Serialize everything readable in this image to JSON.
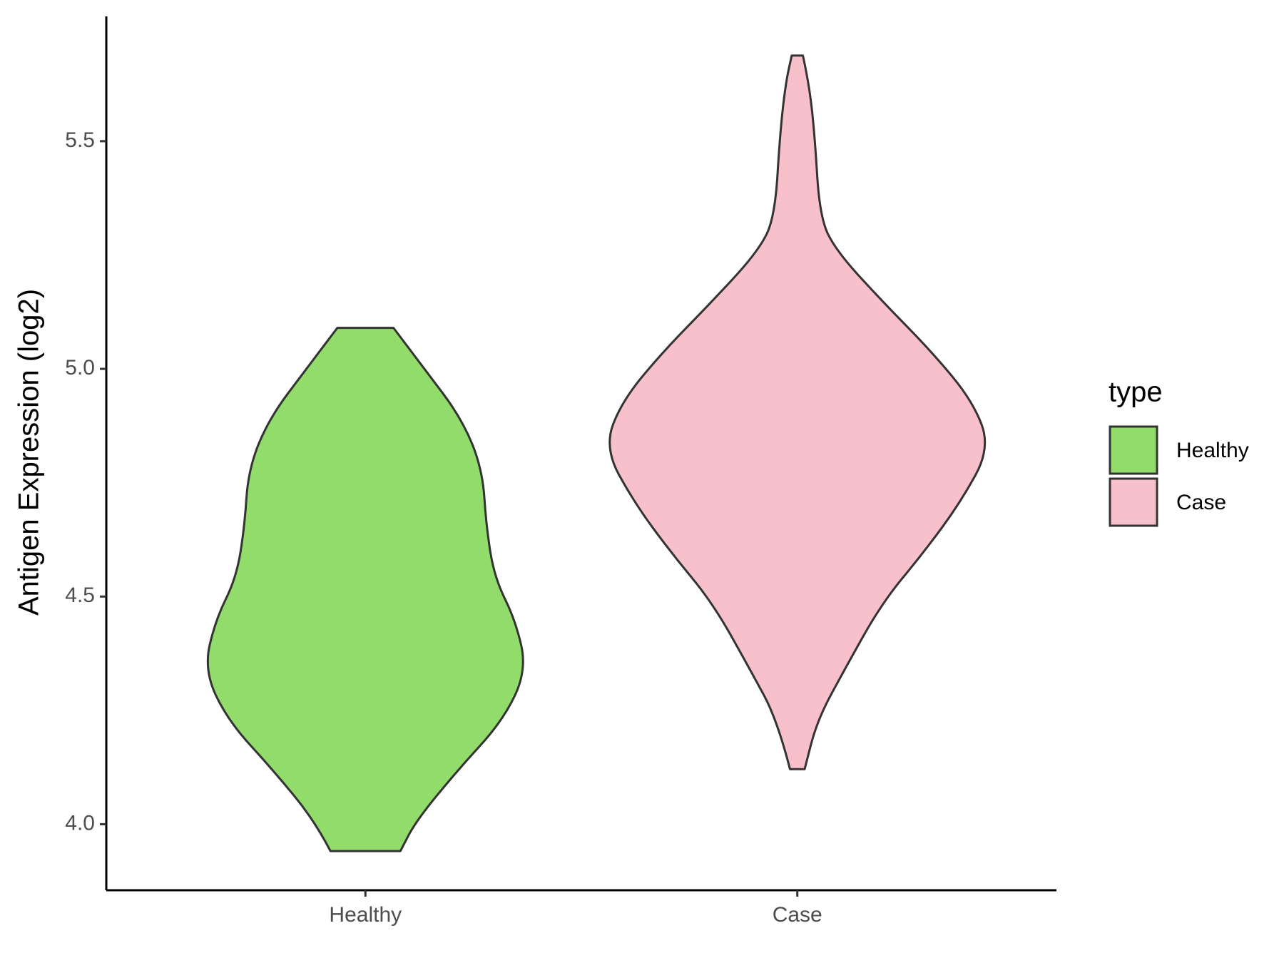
{
  "chart_data": {
    "type": "violin",
    "y_label": "Antigen Expression (log2)",
    "categories": [
      "Healthy",
      "Case"
    ],
    "ylim": [
      3.855,
      5.774
    ],
    "yticks": [
      {
        "value": 4.0,
        "label": "4.0"
      },
      4.5,
      {
        "value": 5.0,
        "label": "5.0"
      },
      5.5
    ],
    "grid": false,
    "legend_title": "type",
    "legend_position": "right",
    "series": [
      {
        "name": "Healthy",
        "color": "#92dc6b",
        "y": [
          5.09,
          5.001,
          4.891,
          4.78,
          4.652,
          4.541,
          4.449,
          4.339,
          4.228,
          4.118,
          4.007,
          3.941
        ],
        "width": [
          0.065,
          0.136,
          0.223,
          0.271,
          0.28,
          0.299,
          0.347,
          0.374,
          0.319,
          0.213,
          0.117,
          0.081
        ]
      },
      {
        "name": "Case",
        "color": "#f7c0cb",
        "y": [
          5.688,
          5.627,
          5.517,
          5.333,
          5.259,
          5.149,
          5.038,
          4.928,
          4.826,
          4.707,
          4.596,
          4.486,
          4.339,
          4.228,
          4.121
        ],
        "width": [
          0.013,
          0.027,
          0.04,
          0.052,
          0.09,
          0.196,
          0.311,
          0.407,
          0.447,
          0.378,
          0.292,
          0.196,
          0.109,
          0.046,
          0.017
        ]
      }
    ]
  }
}
